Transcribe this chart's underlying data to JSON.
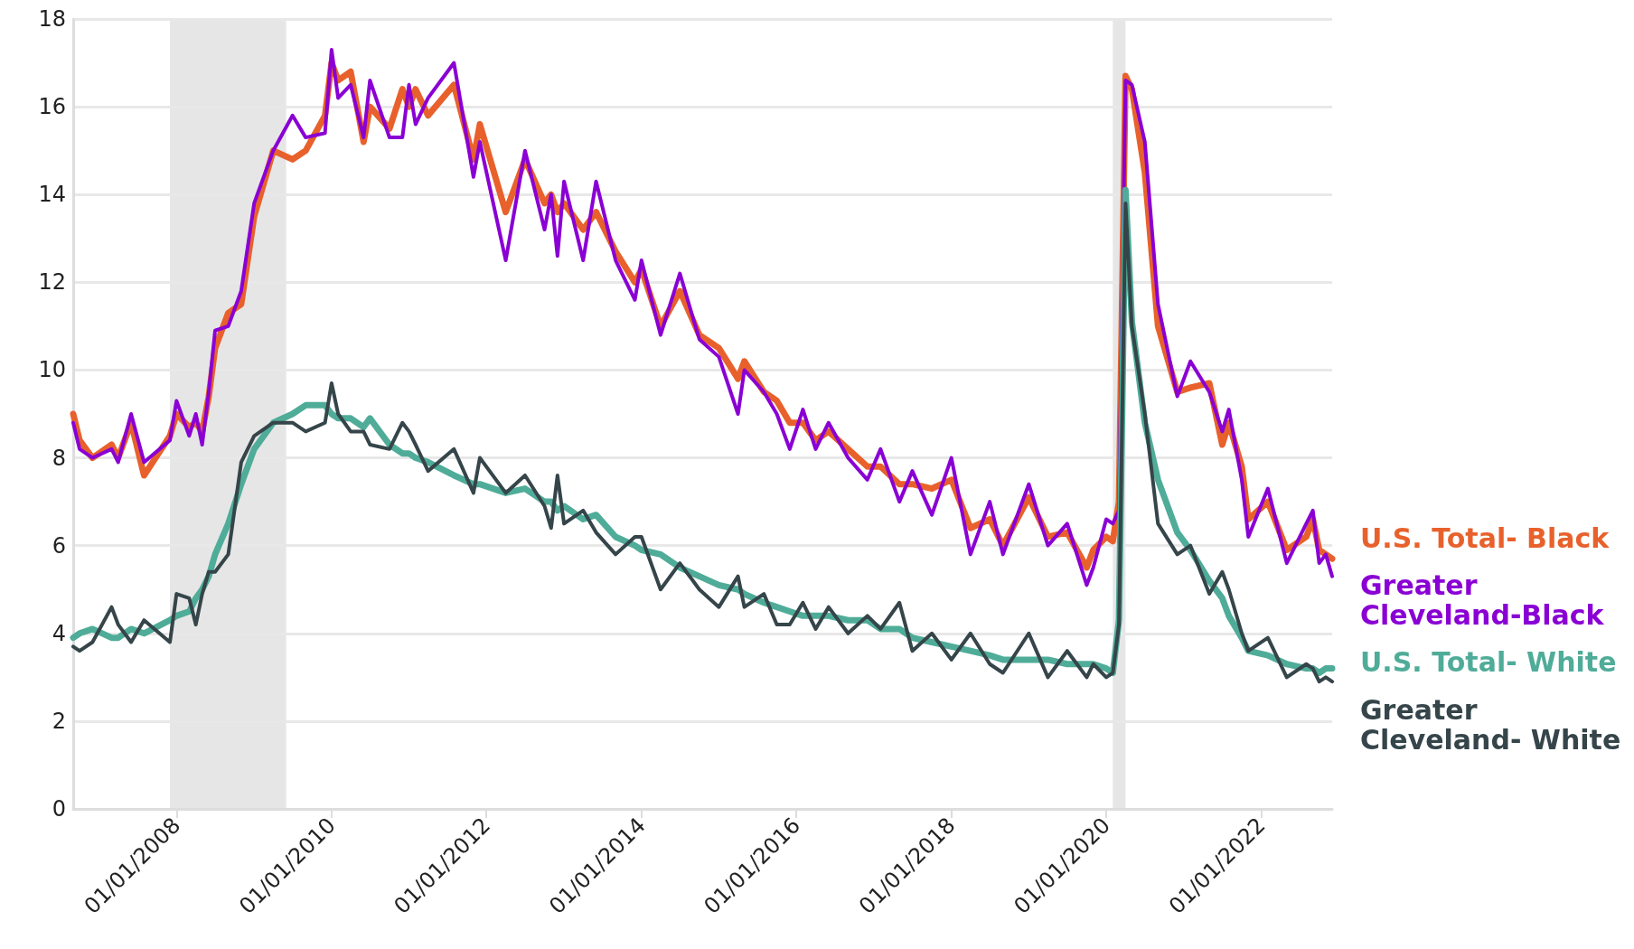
{
  "chart_data": {
    "type": "line",
    "x": [
      "2006-09",
      "2006-10",
      "2006-12",
      "2007-03",
      "2007-04",
      "2007-06",
      "2007-08",
      "2007-12",
      "2008-01",
      "2008-03",
      "2008-04",
      "2008-05",
      "2008-06",
      "2008-07",
      "2008-09",
      "2008-11",
      "2009-01",
      "2009-04",
      "2009-07",
      "2009-09",
      "2009-12",
      "2010-01",
      "2010-02",
      "2010-04",
      "2010-06",
      "2010-07",
      "2010-10",
      "2010-12",
      "2011-01",
      "2011-02",
      "2011-04",
      "2011-08",
      "2011-11",
      "2011-12",
      "2012-04",
      "2012-07",
      "2012-10",
      "2012-11",
      "2012-12",
      "2013-01",
      "2013-04",
      "2013-06",
      "2013-09",
      "2013-12",
      "2014-01",
      "2014-04",
      "2014-07",
      "2014-10",
      "2015-01",
      "2015-04",
      "2015-05",
      "2015-08",
      "2015-10",
      "2015-12",
      "2016-02",
      "2016-04",
      "2016-06",
      "2016-09",
      "2016-12",
      "2017-02",
      "2017-05",
      "2017-07",
      "2017-10",
      "2018-01",
      "2018-04",
      "2018-07",
      "2018-09",
      "2019-01",
      "2019-04",
      "2019-07",
      "2019-10",
      "2019-11",
      "2020-01",
      "2020-02",
      "2020-03",
      "2020-04",
      "2020-05",
      "2020-07",
      "2020-09",
      "2020-12",
      "2021-02",
      "2021-05",
      "2021-07",
      "2021-08",
      "2021-10",
      "2021-11",
      "2022-02",
      "2022-05",
      "2022-08",
      "2022-09",
      "2022-10",
      "2022-11",
      "2022-12"
    ],
    "series": [
      {
        "name": "U.S. Total- Black",
        "color": "#e8612c",
        "values": [
          9.0,
          8.4,
          8.0,
          8.3,
          8.0,
          8.8,
          7.6,
          8.5,
          9.0,
          8.7,
          8.8,
          8.6,
          9.4,
          10.5,
          11.3,
          11.5,
          13.5,
          15.0,
          14.8,
          15.0,
          15.8,
          17.0,
          16.6,
          16.8,
          15.2,
          16.0,
          15.5,
          16.4,
          16.0,
          16.4,
          15.8,
          16.5,
          14.8,
          15.6,
          13.6,
          14.8,
          13.8,
          14.0,
          13.6,
          13.8,
          13.2,
          13.6,
          12.7,
          12.0,
          12.3,
          11.0,
          11.8,
          10.8,
          10.5,
          9.8,
          10.2,
          9.5,
          9.3,
          8.8,
          8.8,
          8.4,
          8.6,
          8.2,
          7.8,
          7.8,
          7.4,
          7.4,
          7.3,
          7.5,
          6.4,
          6.6,
          6.0,
          7.1,
          6.2,
          6.3,
          5.5,
          5.9,
          6.2,
          6.1,
          7.0,
          16.7,
          16.4,
          14.5,
          11.0,
          9.5,
          9.6,
          9.7,
          8.3,
          8.8,
          7.8,
          6.6,
          7.0,
          5.9,
          6.2,
          6.6,
          5.9,
          5.8,
          5.7
        ]
      },
      {
        "name": "Greater Cleveland-Black",
        "color": "#8a00d4",
        "values": [
          8.8,
          8.2,
          8.0,
          8.2,
          7.9,
          9.0,
          7.9,
          8.4,
          9.3,
          8.5,
          9.0,
          8.3,
          9.5,
          10.9,
          11.0,
          11.8,
          13.8,
          15.0,
          15.8,
          15.3,
          15.4,
          17.3,
          16.2,
          16.5,
          15.3,
          16.6,
          15.3,
          15.3,
          16.5,
          15.6,
          16.2,
          17.0,
          14.4,
          15.2,
          12.5,
          15.0,
          13.2,
          14.0,
          12.6,
          14.3,
          12.5,
          14.3,
          12.5,
          11.6,
          12.5,
          10.8,
          12.2,
          10.7,
          10.3,
          9.0,
          10.0,
          9.5,
          9.0,
          8.2,
          9.1,
          8.2,
          8.8,
          8.0,
          7.5,
          8.2,
          7.0,
          7.7,
          6.7,
          8.0,
          5.8,
          7.0,
          5.8,
          7.4,
          6.0,
          6.5,
          5.1,
          5.5,
          6.6,
          6.5,
          6.8,
          16.6,
          16.5,
          15.2,
          11.5,
          9.4,
          10.2,
          9.5,
          8.6,
          9.1,
          7.5,
          6.2,
          7.3,
          5.6,
          6.5,
          6.8,
          5.6,
          5.8,
          5.3
        ]
      },
      {
        "name": "U.S. Total- White",
        "color": "#4fac98",
        "values": [
          3.9,
          4.0,
          4.1,
          3.9,
          3.9,
          4.1,
          4.0,
          4.3,
          4.4,
          4.5,
          4.8,
          5.0,
          5.3,
          5.8,
          6.5,
          7.4,
          8.2,
          8.8,
          9.0,
          9.2,
          9.2,
          9.0,
          8.9,
          8.9,
          8.7,
          8.9,
          8.3,
          8.1,
          8.1,
          8.0,
          7.9,
          7.6,
          7.4,
          7.4,
          7.2,
          7.3,
          7.0,
          7.0,
          6.8,
          6.9,
          6.6,
          6.7,
          6.2,
          6.0,
          5.9,
          5.8,
          5.5,
          5.3,
          5.1,
          5.0,
          4.9,
          4.7,
          4.6,
          4.5,
          4.4,
          4.4,
          4.4,
          4.3,
          4.3,
          4.1,
          4.1,
          3.9,
          3.8,
          3.7,
          3.6,
          3.5,
          3.4,
          3.4,
          3.4,
          3.3,
          3.3,
          3.3,
          3.2,
          3.1,
          4.3,
          14.1,
          11.1,
          8.8,
          7.5,
          6.3,
          5.9,
          5.2,
          4.8,
          4.4,
          3.9,
          3.6,
          3.5,
          3.3,
          3.2,
          3.2,
          3.1,
          3.2,
          3.2
        ]
      },
      {
        "name": "Greater Cleveland- White",
        "color": "#35454a",
        "values": [
          3.7,
          3.6,
          3.8,
          4.6,
          4.2,
          3.8,
          4.3,
          3.8,
          4.9,
          4.8,
          4.2,
          4.9,
          5.4,
          5.4,
          5.8,
          7.9,
          8.5,
          8.8,
          8.8,
          8.6,
          8.8,
          9.7,
          9.0,
          8.6,
          8.6,
          8.3,
          8.2,
          8.8,
          8.6,
          8.3,
          7.7,
          8.2,
          7.2,
          8.0,
          7.2,
          7.6,
          6.9,
          6.4,
          7.6,
          6.5,
          6.8,
          6.3,
          5.8,
          6.2,
          6.2,
          5.0,
          5.6,
          5.0,
          4.6,
          5.3,
          4.6,
          4.9,
          4.2,
          4.2,
          4.7,
          4.1,
          4.6,
          4.0,
          4.4,
          4.1,
          4.7,
          3.6,
          4.0,
          3.4,
          4.0,
          3.3,
          3.1,
          4.0,
          3.0,
          3.6,
          3.0,
          3.3,
          3.0,
          3.1,
          4.2,
          13.8,
          11.0,
          9.0,
          6.5,
          5.8,
          6.0,
          4.9,
          5.4,
          5.0,
          4.0,
          3.6,
          3.9,
          3.0,
          3.3,
          3.2,
          2.9,
          3.0,
          2.9
        ]
      }
    ],
    "xlim": [
      "2006-09",
      "2022-12"
    ],
    "xticks": [
      {
        "value": "2008-01-01",
        "label": "01/01/2008"
      },
      {
        "value": "2010-01-01",
        "label": "01/01/2010"
      },
      {
        "value": "2012-01-01",
        "label": "01/01/2012"
      },
      {
        "value": "2014-01-01",
        "label": "01/01/2014"
      },
      {
        "value": "2016-01-01",
        "label": "01/01/2016"
      },
      {
        "value": "2018-01-01",
        "label": "01/01/2018"
      },
      {
        "value": "2020-01-01",
        "label": "01/01/2020"
      },
      {
        "value": "2022-01-01",
        "label": "01/01/2022"
      }
    ],
    "ylim": [
      0,
      18
    ],
    "yticks": [
      0,
      2,
      4,
      6,
      8,
      10,
      12,
      14,
      16,
      18
    ],
    "grid": "y",
    "marker": "none",
    "line_style": "solid",
    "bands": [
      {
        "axis": "x",
        "from": "2007-12",
        "to": "2009-06",
        "color": "#e6e6e6"
      },
      {
        "axis": "x",
        "from": "2020-02",
        "to": "2020-04",
        "color": "#e6e6e6"
      }
    ]
  }
}
